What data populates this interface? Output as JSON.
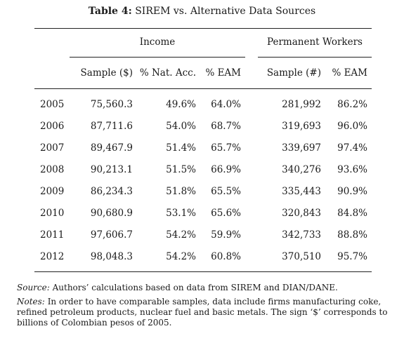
{
  "caption": {
    "label": "Table 4:",
    "text": "SIREM vs. Alternative Data Sources"
  },
  "groups": {
    "income": "Income",
    "workers": "Permanent Workers"
  },
  "columns": [
    "Sample ($)",
    "% Nat. Acc.",
    "% EAM",
    "Sample (#)",
    "% EAM"
  ],
  "rows": [
    {
      "year": "2005",
      "inc_sample": "75,560.3",
      "nat_acc": "49.6%",
      "eam1": "64.0%",
      "wrk_sample": "281,992",
      "eam2": "86.2%"
    },
    {
      "year": "2006",
      "inc_sample": "87,711.6",
      "nat_acc": "54.0%",
      "eam1": "68.7%",
      "wrk_sample": "319,693",
      "eam2": "96.0%"
    },
    {
      "year": "2007",
      "inc_sample": "89,467.9",
      "nat_acc": "51.4%",
      "eam1": "65.7%",
      "wrk_sample": "339,697",
      "eam2": "97.4%"
    },
    {
      "year": "2008",
      "inc_sample": "90,213.1",
      "nat_acc": "51.5%",
      "eam1": "66.9%",
      "wrk_sample": "340,276",
      "eam2": "93.6%"
    },
    {
      "year": "2009",
      "inc_sample": "86,234.3",
      "nat_acc": "51.8%",
      "eam1": "65.5%",
      "wrk_sample": "335,443",
      "eam2": "90.9%"
    },
    {
      "year": "2010",
      "inc_sample": "90,680.9",
      "nat_acc": "53.1%",
      "eam1": "65.6%",
      "wrk_sample": "320,843",
      "eam2": "84.8%"
    },
    {
      "year": "2011",
      "inc_sample": "97,606.7",
      "nat_acc": "54.2%",
      "eam1": "59.9%",
      "wrk_sample": "342,733",
      "eam2": "88.8%"
    },
    {
      "year": "2012",
      "inc_sample": "98,048.3",
      "nat_acc": "54.2%",
      "eam1": "60.8%",
      "wrk_sample": "370,510",
      "eam2": "95.7%"
    }
  ],
  "source": {
    "label": "Source:",
    "text": "Authors’ calculations based on data from SIREM and DIAN/DANE."
  },
  "notes": {
    "label": "Notes:",
    "text": "In order to have comparable samples, data include firms manufacturing coke, refined petroleum products, nuclear fuel and basic metals.  The sign ‘$’ corresponds to billions of Colombian pesos of 2005."
  }
}
